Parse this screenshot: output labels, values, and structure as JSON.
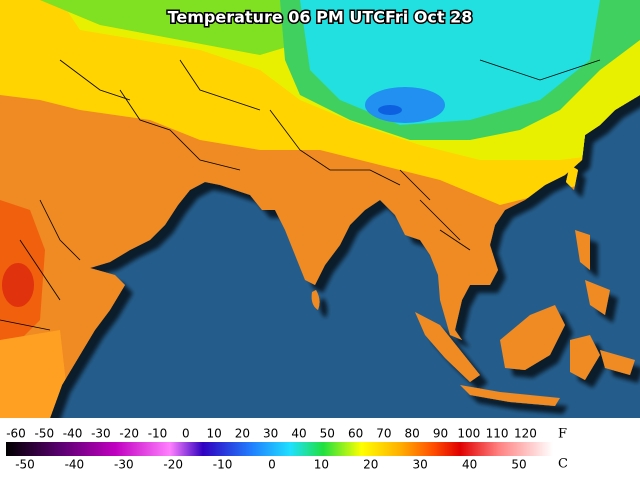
{
  "title": "Temperature 06 PM UTCFri Oct 28",
  "legend": {
    "fahrenheit": {
      "unit": "F",
      "labels": [
        -60,
        -50,
        -40,
        -30,
        -20,
        -10,
        0,
        10,
        20,
        30,
        40,
        50,
        60,
        70,
        80,
        90,
        100,
        110,
        120
      ]
    },
    "celsius": {
      "unit": "C",
      "labels": [
        -50,
        -40,
        -30,
        -20,
        -10,
        0,
        10,
        20,
        30,
        40,
        50
      ]
    }
  }
}
